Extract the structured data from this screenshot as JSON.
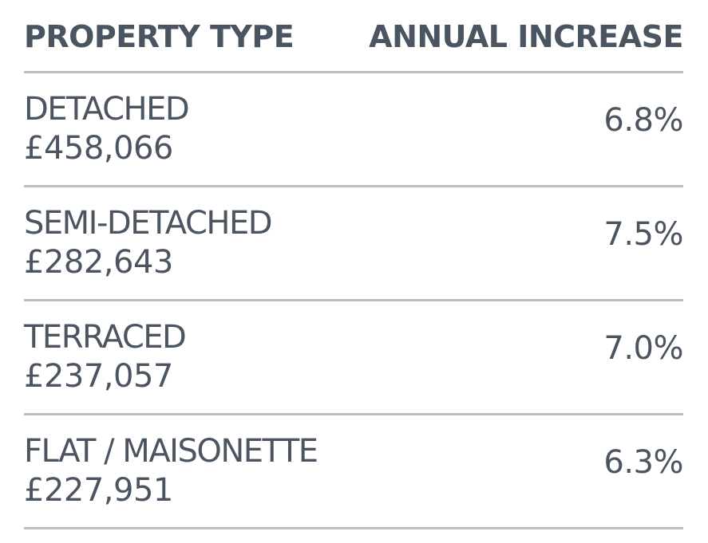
{
  "header": {
    "property_type": "PROPERTY TYPE",
    "annual_increase": "ANNUAL INCREASE"
  },
  "rows": [
    {
      "type": "DETACHED",
      "price": "£458,066",
      "increase": "6.8%"
    },
    {
      "type": "SEMI-DETACHED",
      "price": "£282,643",
      "increase": "7.5%"
    },
    {
      "type": "TERRACED",
      "price": "£237,057",
      "increase": "7.0%"
    },
    {
      "type": "FLAT / MAISONETTE",
      "price": "£227,951",
      "increase": "6.3%"
    }
  ],
  "colors": {
    "text": "#4b5561",
    "divider": "#b9bec3",
    "background": "#ffffff"
  }
}
